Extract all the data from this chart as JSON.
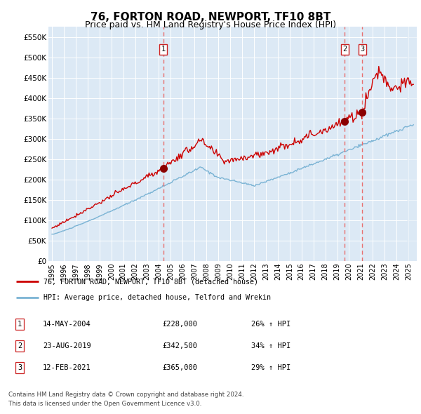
{
  "title": "76, FORTON ROAD, NEWPORT, TF10 8BT",
  "subtitle": "Price paid vs. HM Land Registry's House Price Index (HPI)",
  "title_fontsize": 11,
  "subtitle_fontsize": 9,
  "plot_bg_color": "#dce9f5",
  "ylim_max": 575000,
  "yticks": [
    0,
    50000,
    100000,
    150000,
    200000,
    250000,
    300000,
    350000,
    400000,
    450000,
    500000,
    550000
  ],
  "xlim_start": 1994.7,
  "xlim_end": 2025.7,
  "sales": [
    {
      "year": 2004.37,
      "price": 228000,
      "label": "1"
    },
    {
      "year": 2019.64,
      "price": 342500,
      "label": "2"
    },
    {
      "year": 2021.12,
      "price": 365000,
      "label": "3"
    }
  ],
  "red_line_color": "#cc0000",
  "blue_line_color": "#7ab3d4",
  "dashed_color": "#e87070",
  "legend_entry1": "76, FORTON ROAD, NEWPORT, TF10 8BT (detached house)",
  "legend_entry2": "HPI: Average price, detached house, Telford and Wrekin",
  "footer1": "Contains HM Land Registry data © Crown copyright and database right 2024.",
  "footer2": "This data is licensed under the Open Government Licence v3.0.",
  "table_rows": [
    {
      "num": "1",
      "date": "14-MAY-2004",
      "price": "£228,000",
      "pct": "26% ↑ HPI"
    },
    {
      "num": "2",
      "date": "23-AUG-2019",
      "price": "£342,500",
      "pct": "34% ↑ HPI"
    },
    {
      "num": "3",
      "date": "12-FEB-2021",
      "price": "£365,000",
      "pct": "29% ↑ HPI"
    }
  ]
}
